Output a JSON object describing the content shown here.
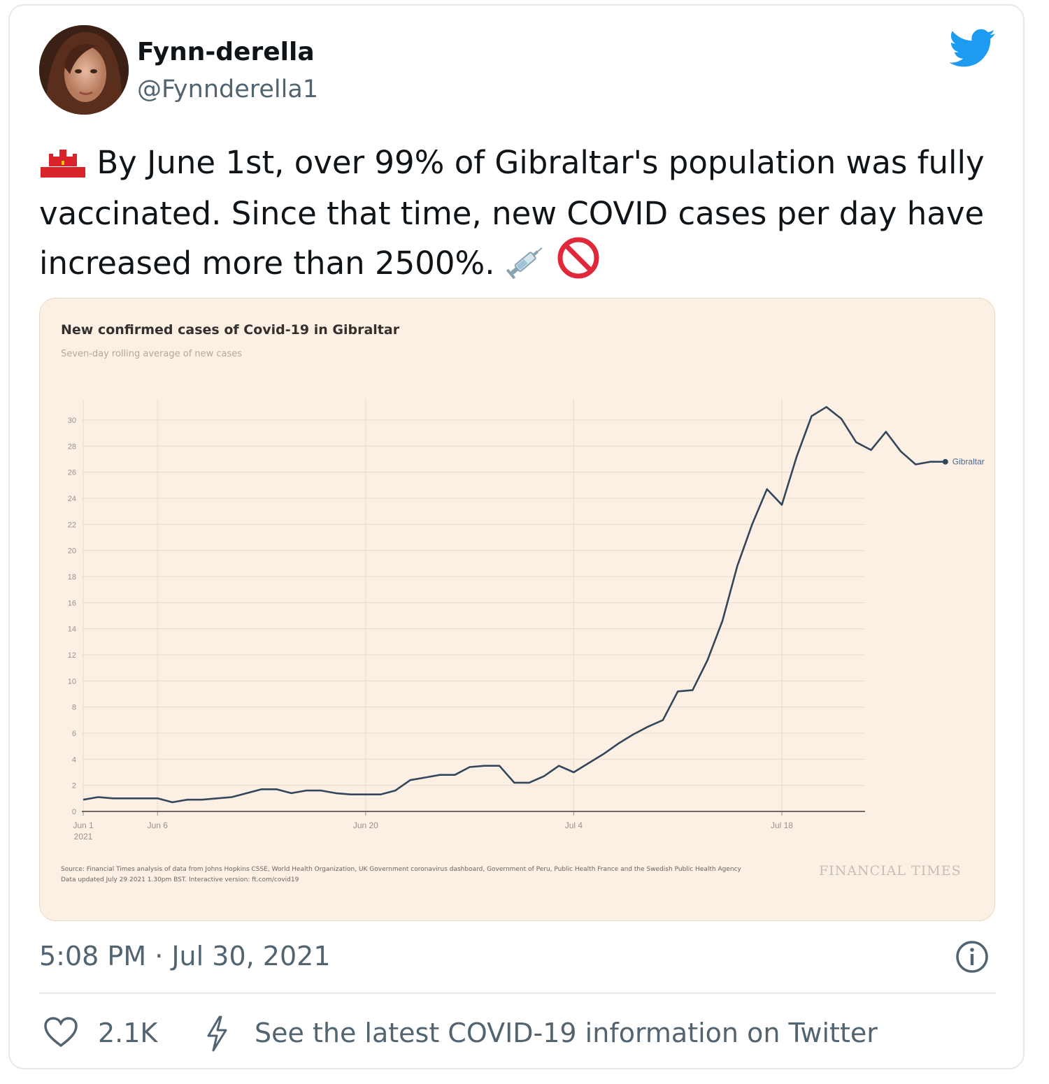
{
  "tweet": {
    "display_name": "Fynn-derella",
    "handle": "@Fynnderella1",
    "text": "By June 1st, over 99% of Gibraltar's population was fully vaccinated. Since that time, new COVID cases per day have increased more than 2500%.",
    "leading_emoji": "gibraltar-flag-icon",
    "trailing_emojis": [
      "syringe-icon",
      "prohibited-icon"
    ],
    "timestamp": "5:08 PM · Jul 30, 2021",
    "like_count": "2.1K",
    "covid_link": "See the latest COVID-19 information on Twitter",
    "brand_color": "#1d9bf0"
  },
  "chart_data": {
    "type": "line",
    "title": "New confirmed cases of Covid-19 in Gibraltar",
    "subtitle": "Seven-day rolling average of new cases",
    "y_ticks": [
      "0",
      "2",
      "4",
      "6",
      "8",
      "10",
      "12",
      "14",
      "16",
      "18",
      "20",
      "22",
      "24",
      "26",
      "28",
      "30"
    ],
    "ylim": [
      0,
      30
    ],
    "x_ticks": [
      {
        "label": "Jun 1",
        "sub": "2021",
        "day": 0
      },
      {
        "label": "Jun 6",
        "sub": "",
        "day": 5
      },
      {
        "label": "Jun 20",
        "sub": "",
        "day": 19
      },
      {
        "label": "Jul 4",
        "sub": "",
        "day": 33
      },
      {
        "label": "Jul 18",
        "sub": "",
        "day": 47
      }
    ],
    "series": [
      {
        "name": "Gibraltar",
        "color": "#33465a",
        "x": [
          "2021-06-01",
          "2021-06-02",
          "2021-06-03",
          "2021-06-04",
          "2021-06-05",
          "2021-06-06",
          "2021-06-07",
          "2021-06-08",
          "2021-06-09",
          "2021-06-10",
          "2021-06-11",
          "2021-06-12",
          "2021-06-13",
          "2021-06-14",
          "2021-06-15",
          "2021-06-16",
          "2021-06-17",
          "2021-06-18",
          "2021-06-19",
          "2021-06-20",
          "2021-06-21",
          "2021-06-22",
          "2021-06-23",
          "2021-06-24",
          "2021-06-25",
          "2021-06-26",
          "2021-06-27",
          "2021-06-28",
          "2021-06-29",
          "2021-06-30",
          "2021-07-01",
          "2021-07-02",
          "2021-07-03",
          "2021-07-04",
          "2021-07-05",
          "2021-07-06",
          "2021-07-07",
          "2021-07-08",
          "2021-07-09",
          "2021-07-10",
          "2021-07-11",
          "2021-07-12",
          "2021-07-13",
          "2021-07-14",
          "2021-07-15",
          "2021-07-16",
          "2021-07-17",
          "2021-07-18",
          "2021-07-19",
          "2021-07-20",
          "2021-07-21",
          "2021-07-22",
          "2021-07-23",
          "2021-07-24",
          "2021-07-25",
          "2021-07-26",
          "2021-07-27",
          "2021-07-28",
          "2021-07-29"
        ],
        "values": [
          0.9,
          1.1,
          1.0,
          1.0,
          1.0,
          1.0,
          0.7,
          0.9,
          0.9,
          1.0,
          1.1,
          1.4,
          1.7,
          1.7,
          1.4,
          1.6,
          1.6,
          1.4,
          1.3,
          1.3,
          1.3,
          1.6,
          2.4,
          2.6,
          2.8,
          2.8,
          3.4,
          3.5,
          3.5,
          2.2,
          2.2,
          2.7,
          3.5,
          3.0,
          3.7,
          4.4,
          5.2,
          5.9,
          6.5,
          7.0,
          9.2,
          9.3,
          11.6,
          14.6,
          18.8,
          22.0,
          24.7,
          23.5,
          27.2,
          30.3,
          31.0,
          30.1,
          28.3,
          27.7,
          29.1,
          27.6,
          26.6,
          26.8,
          26.8
        ]
      }
    ]
  },
  "chart_source": "Source: Financial Times analysis of data from Johns Hopkins CSSE, World Health Organization, UK Government coronavirus dashboard, Government of Peru, Public Health France and the Swedish Public Health Agency",
  "chart_updated": "Data updated July 29 2021 1.30pm BST. Interactive version: ft.com/covid19",
  "chart_brand": "FINANCIAL TIMES"
}
